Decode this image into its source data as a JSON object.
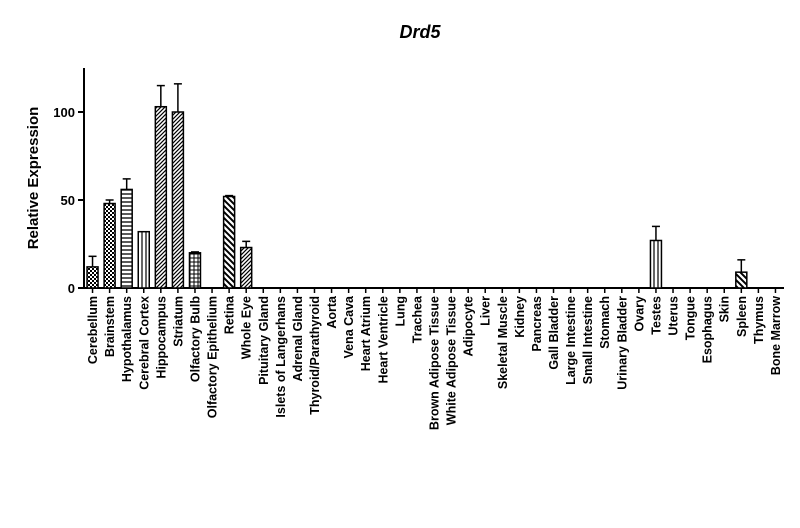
{
  "chart_data": {
    "type": "bar",
    "title": "Drd5",
    "xlabel": "",
    "ylabel": "Relative Expression",
    "ylim": [
      0,
      125
    ],
    "yticks": [
      0,
      50,
      100
    ],
    "grid": false,
    "legend": "none",
    "categories": [
      "Cerebellum",
      "Brainstem",
      "Hypothalamus",
      "Cerebral Cortex",
      "Hippocampus",
      "Striatum",
      "Olfactory Bulb",
      "Olfactory Epithelium",
      "Retina",
      "Whole Eye",
      "Pituitary Gland",
      "Islets of Langerhans",
      "Adrenal Gland",
      "Thyroid/Parathyroid",
      "Aorta",
      "Vena Cava",
      "Heart Atrium",
      "Heart Ventricle",
      "Lung",
      "Trachea",
      "Brown Adipose Tissue",
      "White Adipose Tissue",
      "Adipocyte",
      "Liver",
      "Skeletal Muscle",
      "Kidney",
      "Pancreas",
      "Gall Bladder",
      "Large Intestine",
      "Small Intestine",
      "Stomach",
      "Urinary Bladder",
      "Ovary",
      "Testes",
      "Uterus",
      "Tongue",
      "Esophagus",
      "Skin",
      "Spleen",
      "Thymus",
      "Bone Marrow"
    ],
    "values": [
      12,
      48,
      56,
      32,
      103,
      100,
      20,
      0,
      52,
      23,
      0,
      0,
      0,
      0,
      0,
      0,
      0,
      0,
      0,
      0,
      0,
      0,
      0,
      0,
      0,
      0,
      0,
      0,
      0,
      0,
      0,
      0,
      0,
      27,
      0,
      0,
      0,
      0,
      9,
      0,
      0
    ],
    "errors": [
      6,
      2,
      6,
      0,
      12,
      16,
      0.5,
      0,
      0.5,
      3.5,
      0,
      0,
      0,
      0,
      0,
      0,
      0,
      0,
      0,
      0,
      0,
      0,
      0,
      0,
      0,
      0,
      0,
      0,
      0,
      0,
      0,
      0,
      0,
      8,
      0,
      0,
      0,
      0,
      7,
      0,
      0
    ],
    "patterns": [
      "checker",
      "checker",
      "hlines",
      "vlines",
      "diag-right",
      "diag-right",
      "grid",
      "none",
      "diag-left",
      "diag-right",
      "none",
      "none",
      "none",
      "none",
      "none",
      "none",
      "none",
      "none",
      "none",
      "none",
      "none",
      "none",
      "none",
      "none",
      "none",
      "none",
      "none",
      "none",
      "none",
      "none",
      "none",
      "none",
      "none",
      "vlines",
      "none",
      "none",
      "none",
      "none",
      "diag-left",
      "none",
      "none"
    ]
  }
}
